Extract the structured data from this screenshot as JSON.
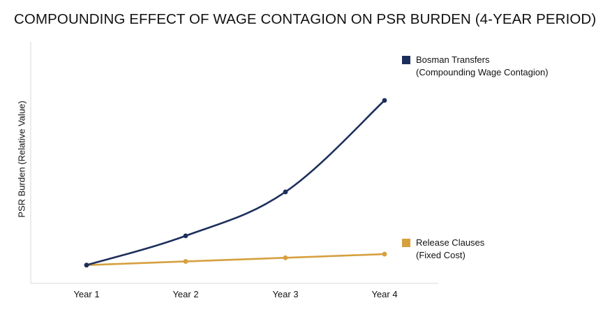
{
  "chart_data": {
    "type": "line",
    "title": "COMPOUNDING EFFECT OF WAGE CONTAGION ON PSR BURDEN (4-YEAR PERIOD)",
    "xlabel": "",
    "ylabel": "PSR Burden (Relative Value)",
    "categories": [
      "Year 1",
      "Year 2",
      "Year 3",
      "Year 4"
    ],
    "ylim": [
      0,
      13.2
    ],
    "grid": false,
    "y_ticks_shown": false,
    "legend_placement": "right",
    "series": [
      {
        "name_line1": "Bosman Transfers",
        "name_line2": "(Compounding Wage Contagion)",
        "color": "#1c2f5c",
        "values": [
          1.0,
          2.6,
          5.0,
          10.0
        ]
      },
      {
        "name_line1": "Release Clauses",
        "name_line2": "(Fixed Cost)",
        "color": "#d6a03f",
        "values": [
          1.0,
          1.2,
          1.4,
          1.6
        ]
      }
    ]
  }
}
